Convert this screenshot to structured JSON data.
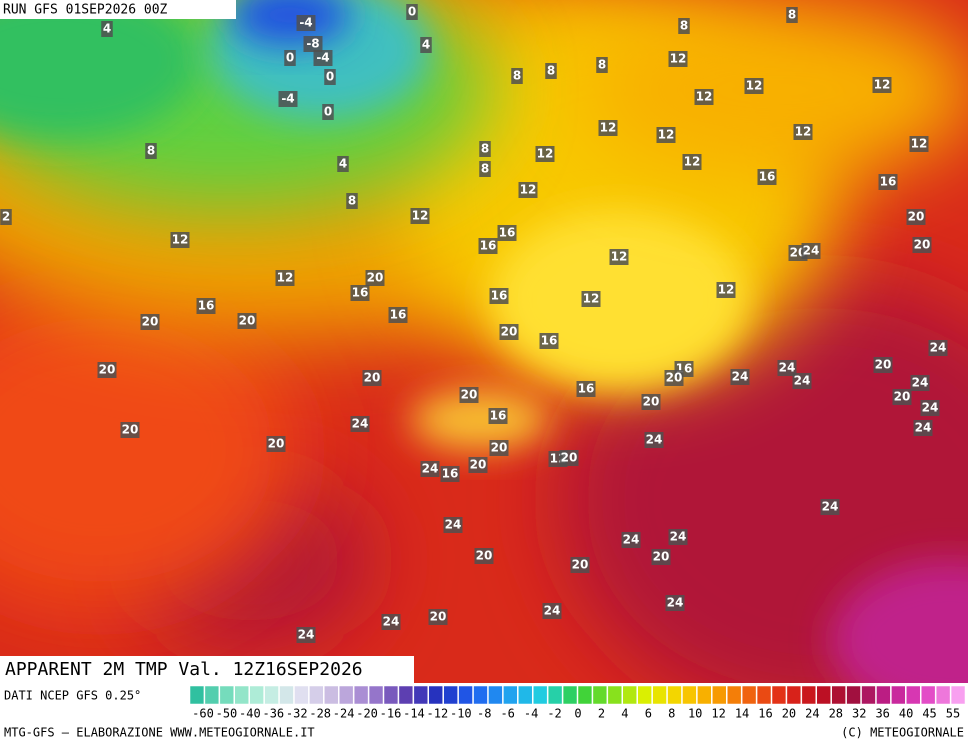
{
  "header": "RUN GFS 01SEP2026 00Z",
  "map_labels": [
    -4,
    -8,
    0,
    -4,
    0,
    -4,
    0,
    0,
    4,
    4,
    8,
    8,
    8,
    8,
    8,
    12,
    12,
    12,
    12,
    12,
    12,
    12,
    12,
    12,
    12,
    8,
    4,
    8,
    8,
    16,
    16,
    12,
    8,
    2,
    12,
    20,
    12,
    16,
    16,
    20,
    20,
    24,
    12,
    12,
    20,
    16,
    16,
    12,
    12,
    16,
    16,
    20,
    20,
    20,
    16,
    24,
    20,
    20,
    16,
    20,
    24,
    24,
    24,
    20,
    24,
    16,
    20,
    20,
    20,
    24,
    16,
    24,
    20,
    20,
    24,
    24,
    20,
    12,
    20,
    24,
    16,
    20,
    24,
    24,
    24,
    24,
    20,
    20,
    20,
    24,
    24,
    20,
    24,
    24
  ],
  "title": "APPARENT 2M TMP Val. 12Z16SEP2026",
  "colorbar": {
    "source": "DATI NCEP GFS 0.25°",
    "ticks": [
      -60,
      -50,
      -40,
      -36,
      -32,
      -28,
      -24,
      -20,
      -16,
      -14,
      -12,
      -10,
      -8,
      -6,
      -4,
      -2,
      0,
      2,
      4,
      6,
      8,
      10,
      12,
      14,
      16,
      20,
      24,
      28,
      32,
      36,
      40,
      45,
      55
    ]
  },
  "footer": {
    "left": "MTG-GFS — ELABORAZIONE WWW.METEOGIORNALE.IT",
    "right": "(C) METEOGIORNALE"
  }
}
